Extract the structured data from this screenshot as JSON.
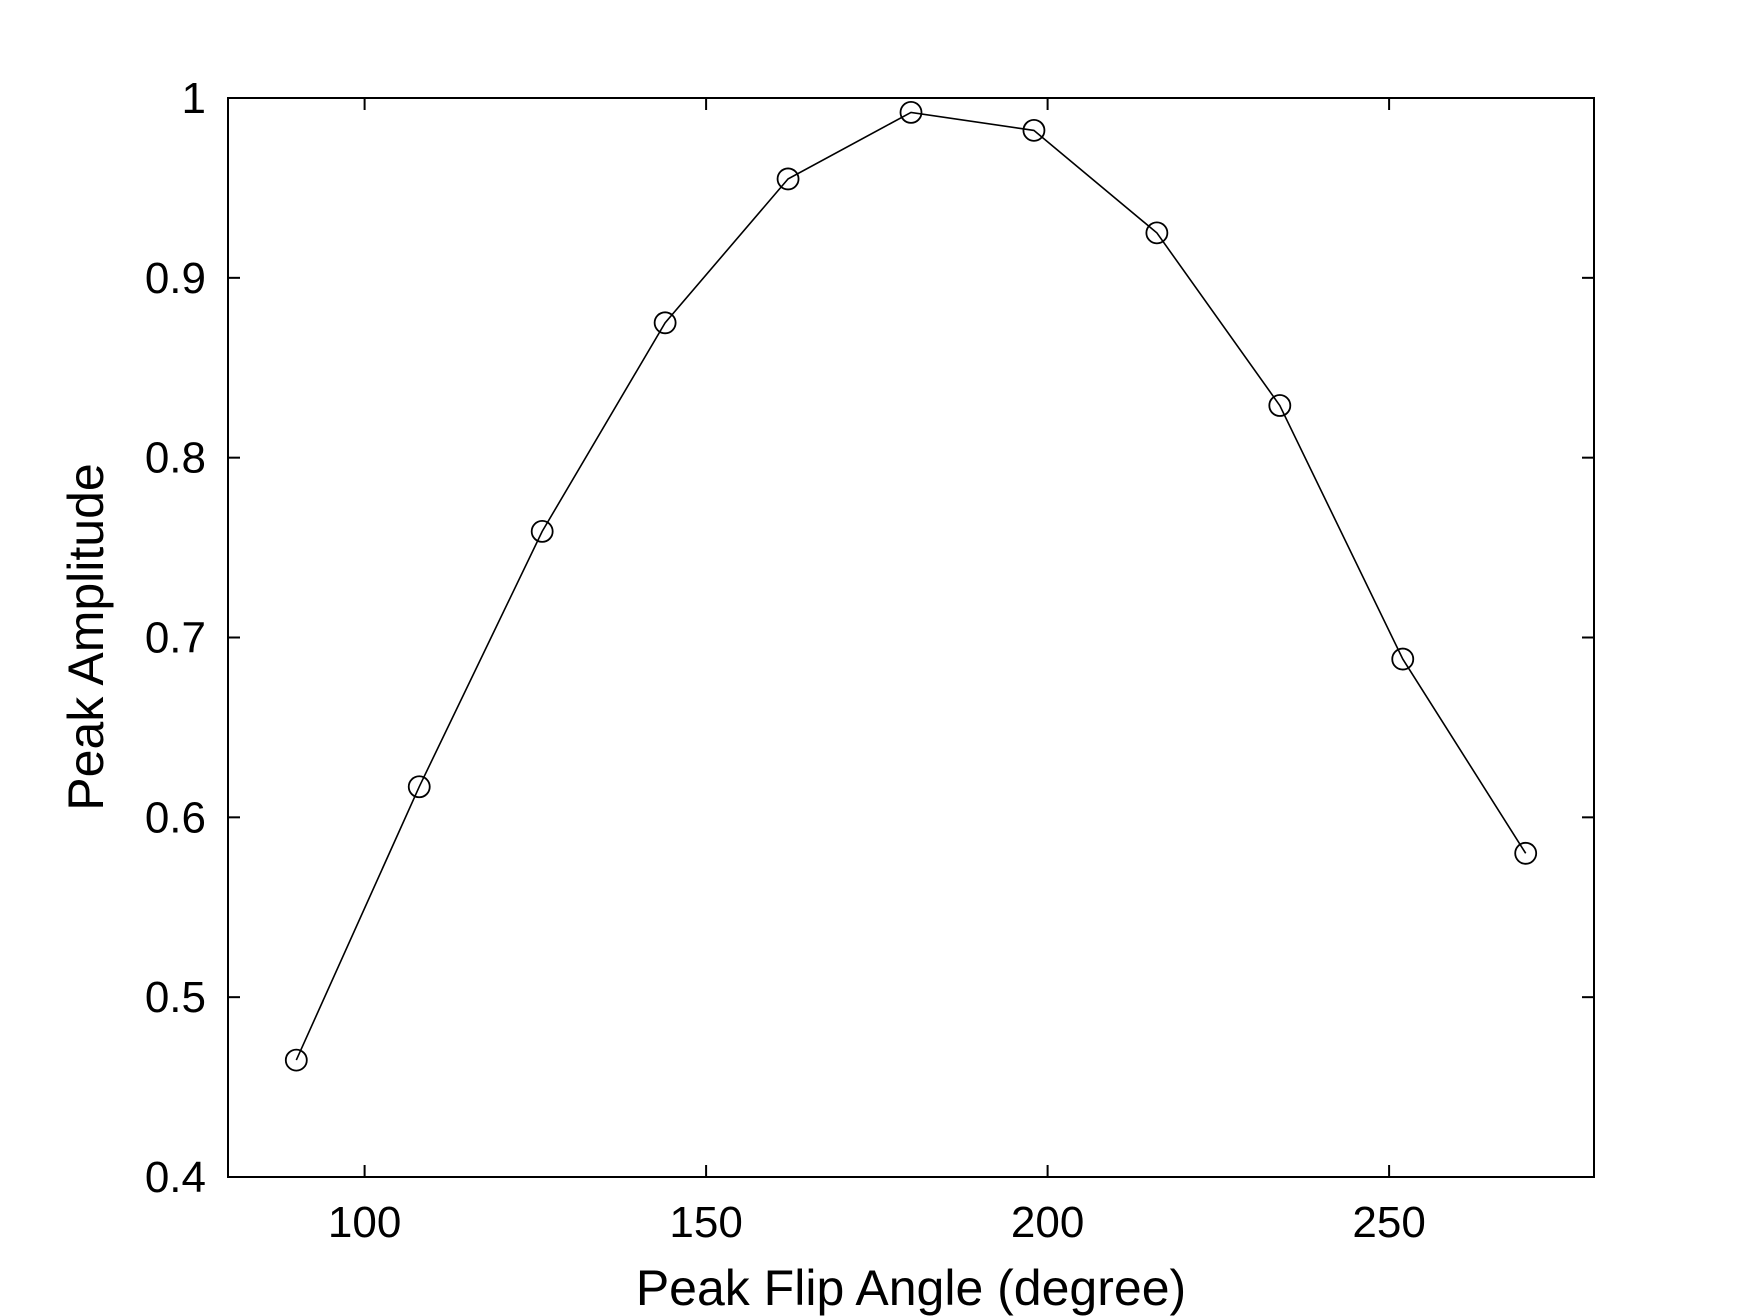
{
  "chart_data": {
    "type": "line",
    "title": "",
    "xlabel": "Peak Flip Angle (degree)",
    "ylabel": "Peak Amplitude",
    "xlim": [
      80,
      280
    ],
    "ylim": [
      0.4,
      1.0
    ],
    "xticks": [
      100,
      150,
      200,
      250
    ],
    "yticks": [
      0.4,
      0.5,
      0.6,
      0.7,
      0.8,
      0.9,
      1.0
    ],
    "xtick_labels": [
      "100",
      "150",
      "200",
      "250"
    ],
    "ytick_labels": [
      "0.4",
      "0.5",
      "0.6",
      "0.7",
      "0.8",
      "0.9",
      "1"
    ],
    "grid": false,
    "legend": "none",
    "series": [
      {
        "marker": "circle",
        "color": "#000000",
        "x": [
          90,
          108,
          126,
          144,
          162,
          180,
          198,
          216,
          234,
          252,
          270
        ],
        "y": [
          0.465,
          0.617,
          0.759,
          0.875,
          0.955,
          0.992,
          0.982,
          0.925,
          0.829,
          0.688,
          0.58
        ]
      }
    ]
  }
}
